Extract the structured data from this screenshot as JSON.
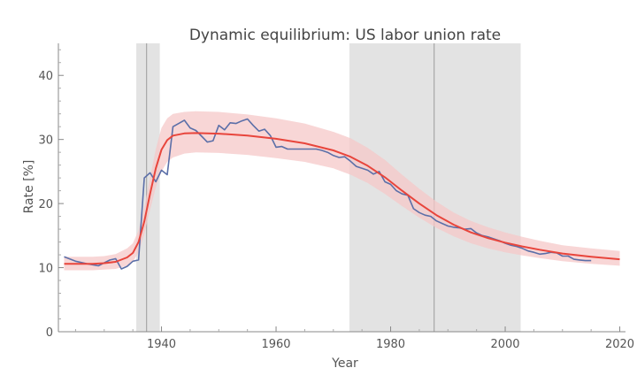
{
  "chart_data": {
    "type": "line",
    "title": "Dynamic equilibrium: US labor union rate",
    "xlabel": "Year",
    "ylabel": "Rate [%]",
    "xlim": [
      1922,
      2021
    ],
    "ylim": [
      0,
      45
    ],
    "x_ticks": [
      1940,
      1960,
      1980,
      2000,
      2020
    ],
    "y_ticks": [
      0,
      10,
      20,
      30,
      40
    ],
    "grid": false,
    "legend": "none",
    "shaded_regions": [
      {
        "start": 1935.6,
        "end": 1939.7,
        "marker": 1937.4,
        "color": "#e3e3e3"
      },
      {
        "start": 1972.8,
        "end": 2002.7,
        "marker": 1987.6,
        "color": "#e3e3e3"
      }
    ],
    "series": [
      {
        "role": "observed",
        "color": "#5b6fa8",
        "x": [
          1923,
          1925,
          1927,
          1929,
          1931,
          1932,
          1933,
          1934,
          1935,
          1936,
          1937,
          1938,
          1939,
          1940,
          1941,
          1942,
          1943,
          1944,
          1945,
          1946,
          1947,
          1948,
          1949,
          1950,
          1951,
          1952,
          1953,
          1954,
          1955,
          1956,
          1957,
          1958,
          1959,
          1960,
          1961,
          1962,
          1963,
          1964,
          1965,
          1966,
          1967,
          1968,
          1969,
          1970,
          1971,
          1972,
          1973,
          1974,
          1975,
          1976,
          1977,
          1978,
          1979,
          1980,
          1981,
          1982,
          1983,
          1984,
          1985,
          1986,
          1987,
          1988,
          1989,
          1990,
          1991,
          1992,
          1993,
          1994,
          1995,
          1996,
          1997,
          1998,
          1999,
          2000,
          2001,
          2002,
          2003,
          2004,
          2005,
          2006,
          2007,
          2008,
          2009,
          2010,
          2011,
          2012,
          2013,
          2014,
          2015
        ],
        "y": [
          11.7,
          11.0,
          10.6,
          10.3,
          11.2,
          11.4,
          9.8,
          10.2,
          11.0,
          11.2,
          24.0,
          24.8,
          23.4,
          25.2,
          24.5,
          32.0,
          32.5,
          33.0,
          31.8,
          31.4,
          30.5,
          29.6,
          29.8,
          32.2,
          31.5,
          32.6,
          32.5,
          32.9,
          33.2,
          32.2,
          31.3,
          31.6,
          30.6,
          28.8,
          28.9,
          28.5,
          28.5,
          28.5,
          28.5,
          28.5,
          28.5,
          28.3,
          28.0,
          27.5,
          27.2,
          27.3,
          26.6,
          25.8,
          25.5,
          25.2,
          24.6,
          25.0,
          23.4,
          23.0,
          22.0,
          21.5,
          21.3,
          19.2,
          18.6,
          18.2,
          18.0,
          17.3,
          16.9,
          16.5,
          16.3,
          16.2,
          16.0,
          16.1,
          15.4,
          15.0,
          14.8,
          14.5,
          14.2,
          13.8,
          13.5,
          13.3,
          13.0,
          12.6,
          12.4,
          12.1,
          12.2,
          12.4,
          12.3,
          11.8,
          11.8,
          11.3,
          11.2,
          11.1,
          11.1
        ]
      },
      {
        "role": "model",
        "color": "#e8453c",
        "x": [
          1923,
          1925,
          1928,
          1930,
          1932,
          1934,
          1935,
          1936,
          1937,
          1938,
          1939,
          1940,
          1941,
          1942,
          1944,
          1946,
          1950,
          1955,
          1960,
          1965,
          1970,
          1973,
          1976,
          1979,
          1982,
          1985,
          1988,
          1991,
          1994,
          1997,
          2000,
          2003,
          2006,
          2010,
          2015,
          2020
        ],
        "y": [
          10.6,
          10.6,
          10.6,
          10.7,
          10.9,
          11.6,
          12.3,
          14.0,
          17.2,
          21.5,
          25.5,
          28.4,
          29.9,
          30.6,
          30.95,
          31.0,
          30.9,
          30.6,
          30.1,
          29.4,
          28.3,
          27.3,
          25.9,
          24.1,
          22.0,
          20.0,
          18.2,
          16.7,
          15.5,
          14.6,
          13.9,
          13.3,
          12.8,
          12.2,
          11.7,
          11.3
        ]
      }
    ],
    "band": {
      "role": "confidence",
      "color": "#f6c8c8",
      "x": [
        1923,
        1925,
        1928,
        1930,
        1932,
        1934,
        1935,
        1936,
        1937,
        1938,
        1939,
        1940,
        1941,
        1942,
        1944,
        1946,
        1950,
        1955,
        1960,
        1965,
        1970,
        1973,
        1976,
        1979,
        1982,
        1985,
        1988,
        1991,
        1994,
        1997,
        2000,
        2003,
        2006,
        2010,
        2015,
        2020
      ],
      "low": [
        9.6,
        9.6,
        9.6,
        9.7,
        9.8,
        10.3,
        10.9,
        12.4,
        15.2,
        19.0,
        22.5,
        25.0,
        26.5,
        27.2,
        27.8,
        28.0,
        27.9,
        27.6,
        27.1,
        26.5,
        25.5,
        24.5,
        23.2,
        21.5,
        19.6,
        17.8,
        16.2,
        14.9,
        13.8,
        13.0,
        12.4,
        11.9,
        11.5,
        11.0,
        10.6,
        10.3
      ],
      "high": [
        11.7,
        11.7,
        11.7,
        11.8,
        12.1,
        13.0,
        13.8,
        15.8,
        19.4,
        24.0,
        28.5,
        31.8,
        33.3,
        34.0,
        34.3,
        34.4,
        34.3,
        33.9,
        33.3,
        32.5,
        31.2,
        30.2,
        28.7,
        26.8,
        24.5,
        22.3,
        20.3,
        18.6,
        17.3,
        16.3,
        15.5,
        14.8,
        14.2,
        13.5,
        13.0,
        12.6
      ]
    }
  }
}
